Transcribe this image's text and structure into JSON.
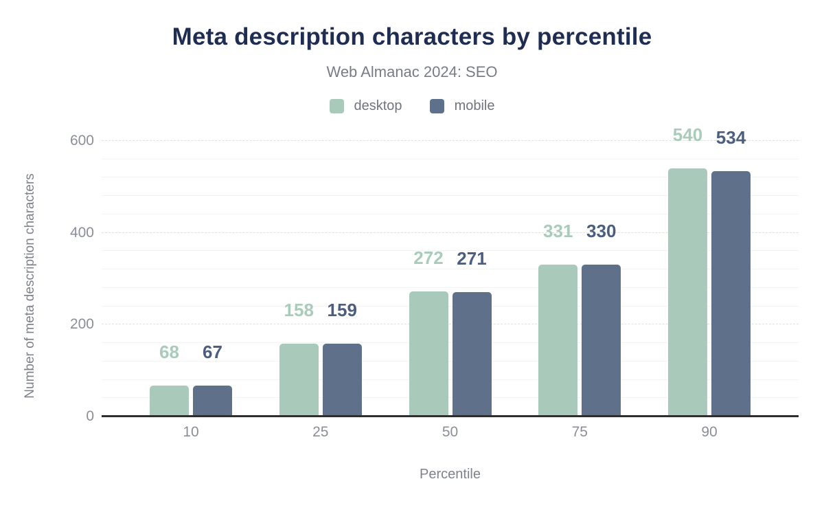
{
  "chart_data": {
    "type": "bar",
    "title": "Meta description characters by percentile",
    "subtitle": "Web Almanac 2024: SEO",
    "xlabel": "Percentile",
    "ylabel": "Number of meta description characters",
    "categories": [
      "10",
      "25",
      "50",
      "75",
      "90"
    ],
    "series": [
      {
        "name": "desktop",
        "color": "#a9caba",
        "label_color": "#a9ccba",
        "values": [
          68,
          158,
          272,
          331,
          540
        ]
      },
      {
        "name": "mobile",
        "color": "#5f708b",
        "label_color": "#4c5e80",
        "values": [
          67,
          159,
          271,
          330,
          534
        ]
      }
    ],
    "ylim": [
      0,
      600
    ],
    "yticks": [
      "0",
      "200",
      "400",
      "600"
    ],
    "grid": {
      "minor_step": 40,
      "major_step": 200,
      "major_style": "dashed",
      "minor_color": "#f3f3f3",
      "major_color": "#dde3da"
    },
    "legend_position": "top",
    "bar_labels_shown": true
  },
  "colors": {
    "title": "#1f2d52",
    "subtitle": "#777c85",
    "legend_text": "#6f747e",
    "tick_text": "#8a8e98",
    "axis_title_text": "#7d828b",
    "axis_line": "#2e2e2e",
    "background": "#ffffff"
  }
}
